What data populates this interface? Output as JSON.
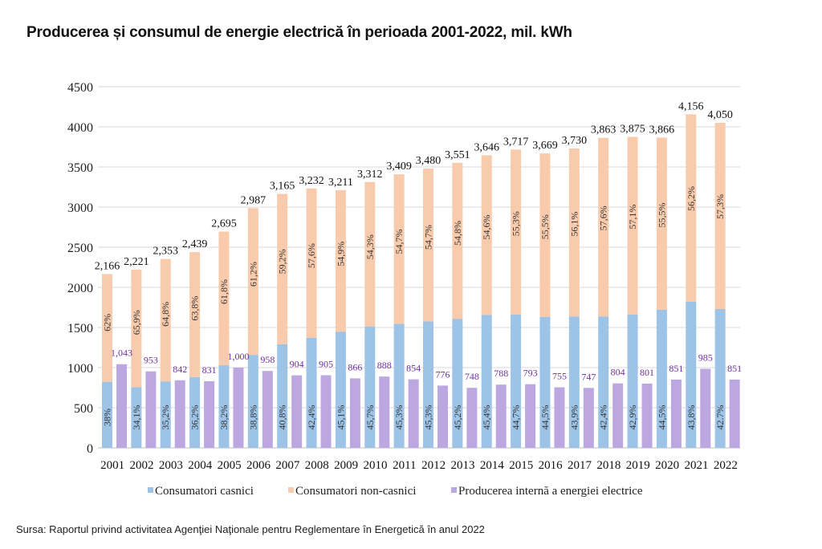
{
  "page": {
    "title": "Producerea și consumul de energie electrică în perioada 2001-2022, mil. kWh",
    "source": "Sursa: Raportul privind activitatea Agenţiei Naţionale pentru Reglementare în Energetică în anul 2022"
  },
  "chart_data": {
    "type": "bar",
    "title": "Producerea și consumul de energie electrică în perioada 2001-2022, mil. kWh",
    "xlabel": "",
    "ylabel": "",
    "ylim": [
      0,
      4500
    ],
    "yticks": [
      0,
      500,
      1000,
      1500,
      2000,
      2500,
      3000,
      3500,
      4000,
      4500
    ],
    "grid": true,
    "legend_position": "bottom-center",
    "categories": [
      "2001",
      "2002",
      "2003",
      "2004",
      "2005",
      "2006",
      "2007",
      "2008",
      "2009",
      "2010",
      "2011",
      "2012",
      "2013",
      "2014",
      "2015",
      "2016",
      "2017",
      "2018",
      "2019",
      "2020",
      "2021",
      "2022"
    ],
    "totals": [
      2166,
      2221,
      2353,
      2439,
      2695,
      2987,
      3165,
      3232,
      3211,
      3312,
      3409,
      3480,
      3551,
      3646,
      3717,
      3669,
      3730,
      3863,
      3875,
      3866,
      4156,
      4050
    ],
    "total_labels": [
      "2,166",
      "2,221",
      "2,353",
      "2,439",
      "2,695",
      "2,987",
      "3,165",
      "3,232",
      "3,211",
      "3,312",
      "3,409",
      "3,480",
      "3,551",
      "3,646",
      "3,717",
      "3,669",
      "3,730",
      "3,863",
      "3,875",
      "3,866",
      "4,156",
      "4,050"
    ],
    "series": [
      {
        "name": "Consumatori casnici",
        "color": "#9dc3e6",
        "stack": "consum",
        "percent_labels": [
          "38%",
          "34,1%",
          "35,2%",
          "36,2%",
          "38,2%",
          "38,8%",
          "40,8%",
          "42,4%",
          "45,1%",
          "45,7%",
          "45,3%",
          "45,3%",
          "45,2%",
          "45,4%",
          "44,7%",
          "44,5%",
          "43,9%",
          "42,4%",
          "42,9%",
          "44,5%",
          "43,8%",
          "42.7%"
        ],
        "percent": [
          38,
          34.1,
          35.2,
          36.2,
          38.2,
          38.8,
          40.8,
          42.4,
          45.1,
          45.7,
          45.3,
          45.3,
          45.2,
          45.4,
          44.7,
          44.5,
          43.9,
          42.4,
          42.9,
          44.5,
          43.8,
          42.7
        ]
      },
      {
        "name": "Consumatori non-casnici",
        "color": "#f8cbad",
        "stack": "consum",
        "percent_labels": [
          "62%",
          "65,9%",
          "64,8%",
          "63,8%",
          "61,8%",
          "61,2%",
          "59,2%",
          "57,6%",
          "54,9%",
          "54,3%",
          "54,7%",
          "54,7%",
          "54,8%",
          "54,6%",
          "55,3%",
          "55,5%",
          "56,1%",
          "57,6%",
          "57,1%",
          "55,5%",
          "56,2%",
          "57,3%"
        ],
        "percent": [
          62,
          65.9,
          64.8,
          63.8,
          61.8,
          61.2,
          59.2,
          57.6,
          54.9,
          54.3,
          54.7,
          54.7,
          54.8,
          54.6,
          55.3,
          55.5,
          56.1,
          57.6,
          57.1,
          55.5,
          56.2,
          57.3
        ]
      },
      {
        "name": "Producerea internă a energiei electrice",
        "color": "#bca7e0",
        "label_color": "#7030a0",
        "values": [
          1043,
          953,
          842,
          831,
          1000,
          958,
          904,
          905,
          866,
          888,
          854,
          776,
          748,
          788,
          793,
          755,
          747,
          804,
          801,
          851,
          985,
          851
        ],
        "value_labels": [
          "1,043",
          "953",
          "842",
          "831",
          "1,000",
          "958",
          "904",
          "905",
          "866",
          "888",
          "854",
          "776",
          "748",
          "788",
          "793",
          "755",
          "747",
          "804",
          "801",
          "851",
          "985",
          "851"
        ]
      }
    ]
  }
}
